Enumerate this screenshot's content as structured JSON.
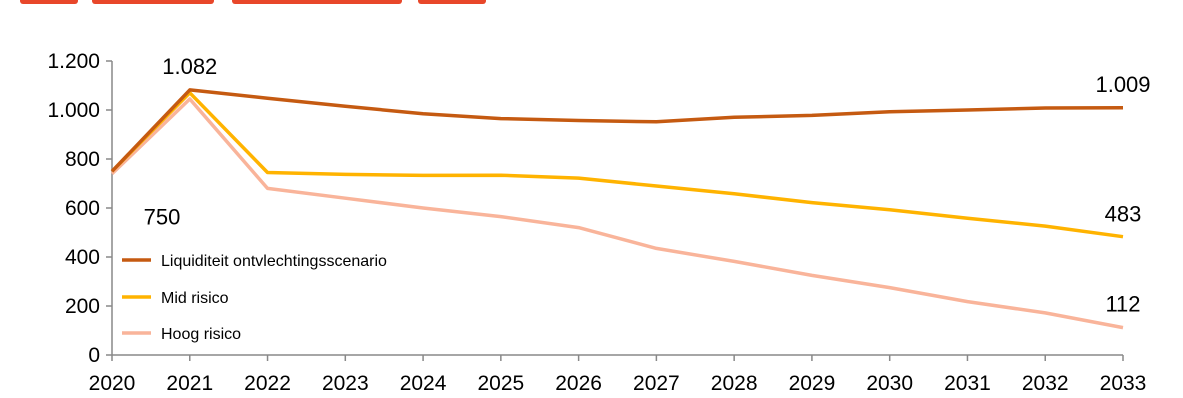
{
  "chart_data": {
    "type": "line",
    "title": "",
    "xlabel": "",
    "ylabel": "",
    "x": [
      "2020",
      "2021",
      "2022",
      "2023",
      "2024",
      "2025",
      "2026",
      "2027",
      "2028",
      "2029",
      "2030",
      "2031",
      "2032",
      "2033"
    ],
    "ylim": [
      0,
      1200
    ],
    "yticks": [
      0,
      200,
      400,
      600,
      800,
      1000,
      1200
    ],
    "ytick_labels": [
      "0",
      "200",
      "400",
      "600",
      "800",
      "1.000",
      "1.200"
    ],
    "grid": false,
    "legend_position": "lower-left",
    "series": [
      {
        "name": "Liquiditeit ontvlechtingsscenario",
        "color": "#c55a11",
        "values": [
          750,
          1082,
          1048,
          1015,
          985,
          965,
          957,
          952,
          970,
          978,
          993,
          1000,
          1008,
          1009
        ]
      },
      {
        "name": "Mid risico",
        "color": "#ffb300",
        "values": [
          750,
          1070,
          745,
          737,
          733,
          734,
          722,
          690,
          658,
          622,
          593,
          558,
          526,
          483
        ]
      },
      {
        "name": "Hoog risico",
        "color": "#f9b49a",
        "values": [
          740,
          1045,
          680,
          640,
          600,
          565,
          520,
          435,
          382,
          325,
          275,
          218,
          172,
          112
        ]
      }
    ],
    "annotations": [
      {
        "text": "1.082",
        "x": "2021",
        "y": 1082
      },
      {
        "text": "750",
        "x": "2020",
        "y": 750
      },
      {
        "text": "1.009",
        "x": "2033",
        "y": 1009
      },
      {
        "text": "483",
        "x": "2033",
        "y": 483
      },
      {
        "text": "112",
        "x": "2033",
        "y": 112
      }
    ]
  }
}
